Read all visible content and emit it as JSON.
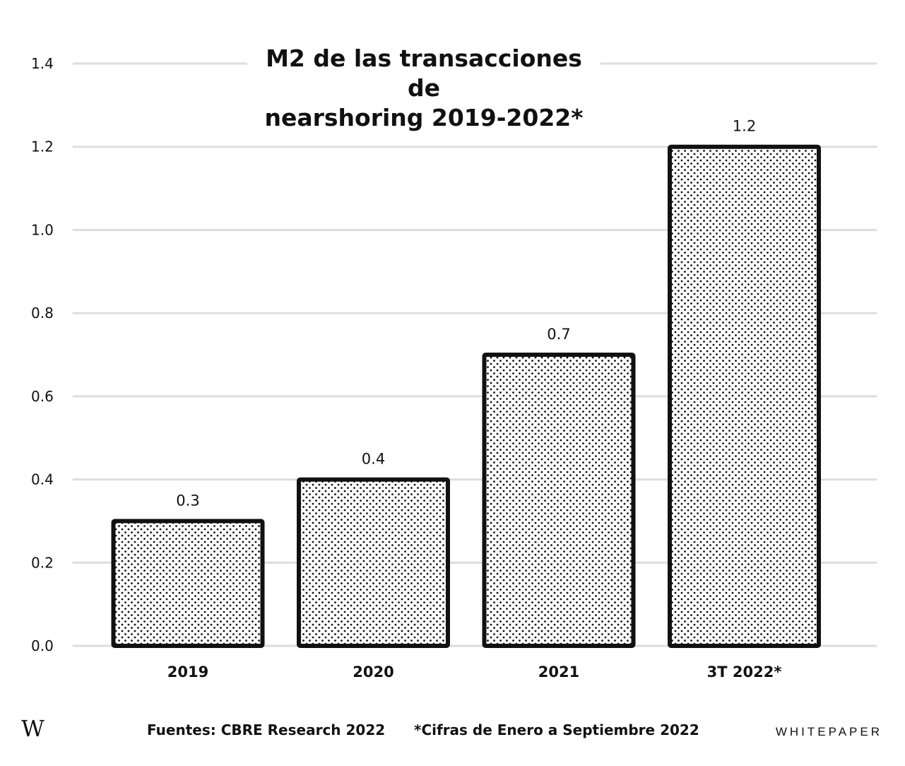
{
  "chart_data": {
    "type": "bar",
    "title_lines": [
      "M2 de las transacciones de",
      "nearshoring 2019-2022*"
    ],
    "categories": [
      "2019",
      "2020",
      "2021",
      "3T 2022*"
    ],
    "values": [
      0.3,
      0.4,
      0.7,
      1.2
    ],
    "data_labels": [
      "0.3",
      "0.4",
      "0.7",
      "1.2"
    ],
    "y_ticks": [
      "0.0",
      "0.2",
      "0.4",
      "0.6",
      "0.8",
      "1.0",
      "1.2",
      "1.4"
    ],
    "ylim": [
      0,
      1.4
    ],
    "xlabel": "",
    "ylabel": "",
    "grid": true,
    "legend": "none",
    "bar_fill": "dotted",
    "bar_stroke": "#111111",
    "grid_color": "#dddddd"
  },
  "footer": {
    "logo": "W",
    "source": "Fuentes: CBRE Research 2022",
    "note": "*Cifras de Enero a Septiembre 2022",
    "brand": "WHITEPAPER"
  }
}
